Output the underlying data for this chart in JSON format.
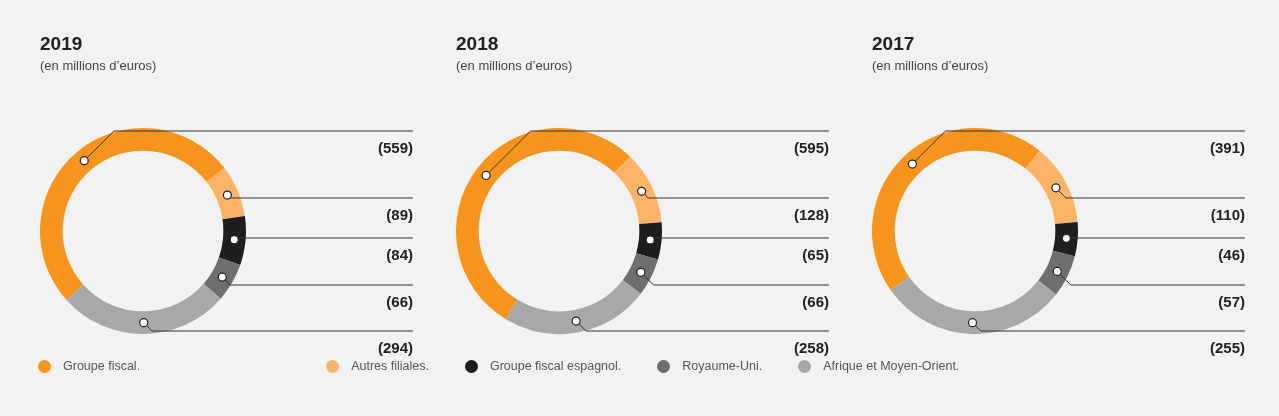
{
  "chart_data": [
    {
      "type": "donut",
      "title": "2019",
      "subtitle": "(en millions d’euros)",
      "categories": [
        "Groupe fiscal.",
        "Autres filiales.",
        "Groupe fiscal espagnol.",
        "Royaume-Uni.",
        "Afrique et Moyen-Orient."
      ],
      "values": [
        559,
        89,
        84,
        66,
        294
      ],
      "value_labels": [
        "(559)",
        "(89)",
        "(84)",
        "(66)",
        "(294)"
      ],
      "colors": [
        "#f7941d",
        "#fbb467",
        "#1e1e1e",
        "#6d6e70",
        "#a7a8aa"
      ],
      "legend": "bottom"
    },
    {
      "type": "donut",
      "title": "2018",
      "subtitle": "(en millions d’euros)",
      "categories": [
        null,
        null,
        null,
        null,
        null
      ],
      "values": [
        595,
        128,
        65,
        66,
        258
      ],
      "value_labels": [
        "(595)",
        "(128)",
        "(65)",
        "(66)",
        "(258)"
      ],
      "colors": [
        "#f7941d",
        "#fbb467",
        "#1e1e1e",
        "#6d6e70",
        "#a7a8aa"
      ]
    },
    {
      "type": "donut",
      "title": "2017",
      "subtitle": "(en millions d’euros)",
      "categories": [
        null,
        null,
        null,
        null,
        null
      ],
      "values": [
        391,
        110,
        46,
        57,
        255
      ],
      "value_labels": [
        "(391)",
        "(110)",
        "(46)",
        "(57)",
        "(255)"
      ],
      "colors": [
        "#f7941d",
        "#fbb467",
        "#1e1e1e",
        "#6d6e70",
        "#a7a8aa"
      ]
    }
  ]
}
